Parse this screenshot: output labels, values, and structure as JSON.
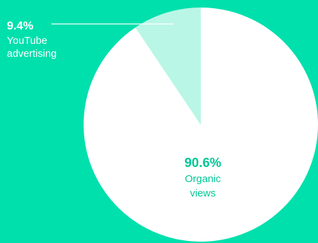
{
  "chart_data": {
    "type": "pie",
    "slices": [
      {
        "name_lines": [
          "Organic",
          "views"
        ],
        "value": 90.6,
        "label": "90.6%"
      },
      {
        "name_lines": [
          "YouTube",
          "advertising"
        ],
        "value": 9.4,
        "label": "9.4%"
      }
    ]
  },
  "colors": {
    "background": "#00e0ad",
    "organic_fill": "#ffffff",
    "advertising_fill": "#b9f6e6",
    "organic_text": "#00c896",
    "advertising_text": "#ffffff",
    "leader_line": "#ffffff"
  }
}
